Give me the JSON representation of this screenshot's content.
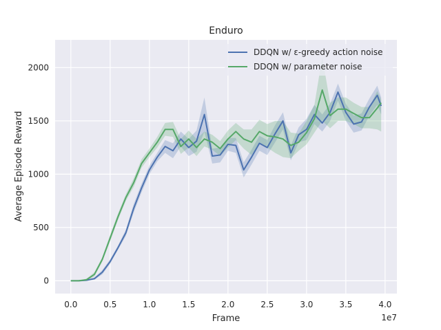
{
  "chart_data": {
    "type": "line",
    "title": "Enduro",
    "xlabel": "Frame",
    "ylabel": "Average Episode Reward",
    "x_offset_label": "1e7",
    "xlim": [
      -0.2,
      4.15
    ],
    "ylim": [
      -120,
      2260
    ],
    "xticks": [
      0.0,
      0.5,
      1.0,
      1.5,
      2.0,
      2.5,
      3.0,
      3.5,
      4.0
    ],
    "xtick_labels": [
      "0.0",
      "0.5",
      "1.0",
      "1.5",
      "2.0",
      "2.5",
      "3.0",
      "3.5",
      "4.0"
    ],
    "yticks": [
      0,
      500,
      1000,
      1500,
      2000
    ],
    "ytick_labels": [
      "0",
      "500",
      "1000",
      "1500",
      "2000"
    ],
    "grid": true,
    "legend_position": "top-right",
    "series": [
      {
        "name": "DDQN w/ ε-greedy action noise",
        "color": "#4c72b0",
        "x": [
          0.0,
          0.1,
          0.2,
          0.3,
          0.4,
          0.5,
          0.6,
          0.7,
          0.8,
          0.9,
          1.0,
          1.1,
          1.2,
          1.3,
          1.4,
          1.5,
          1.6,
          1.7,
          1.8,
          1.9,
          2.0,
          2.1,
          2.2,
          2.3,
          2.4,
          2.5,
          2.6,
          2.7,
          2.8,
          2.9,
          3.0,
          3.1,
          3.2,
          3.3,
          3.4,
          3.5,
          3.6,
          3.7,
          3.8,
          3.9,
          3.95
        ],
        "y": [
          0,
          0,
          5,
          20,
          80,
          180,
          310,
          450,
          680,
          870,
          1040,
          1160,
          1260,
          1220,
          1330,
          1250,
          1310,
          1560,
          1170,
          1180,
          1280,
          1270,
          1040,
          1160,
          1290,
          1250,
          1380,
          1500,
          1200,
          1370,
          1420,
          1560,
          1480,
          1580,
          1770,
          1580,
          1470,
          1490,
          1630,
          1740,
          1640
        ],
        "band_low": [
          0,
          0,
          0,
          10,
          60,
          160,
          290,
          420,
          640,
          830,
          1000,
          1120,
          1200,
          1150,
          1260,
          1170,
          1210,
          1400,
          1100,
          1110,
          1220,
          1200,
          970,
          1090,
          1220,
          1180,
          1300,
          1420,
          1130,
          1300,
          1320,
          1470,
          1400,
          1500,
          1690,
          1500,
          1390,
          1410,
          1550,
          1650,
          1560
        ],
        "band_high": [
          0,
          0,
          10,
          30,
          100,
          200,
          330,
          480,
          720,
          910,
          1080,
          1200,
          1320,
          1290,
          1400,
          1330,
          1410,
          1720,
          1240,
          1250,
          1340,
          1340,
          1110,
          1230,
          1360,
          1320,
          1460,
          1580,
          1270,
          1440,
          1520,
          1650,
          1560,
          1660,
          1850,
          1660,
          1550,
          1570,
          1710,
          1830,
          1720
        ]
      },
      {
        "name": "DDQN w/ parameter noise",
        "color": "#55a868",
        "x": [
          0.0,
          0.1,
          0.2,
          0.3,
          0.4,
          0.5,
          0.6,
          0.7,
          0.8,
          0.9,
          1.0,
          1.1,
          1.2,
          1.3,
          1.4,
          1.5,
          1.6,
          1.7,
          1.8,
          1.9,
          2.0,
          2.1,
          2.2,
          2.3,
          2.4,
          2.5,
          2.6,
          2.7,
          2.8,
          2.9,
          3.0,
          3.1,
          3.2,
          3.3,
          3.4,
          3.5,
          3.6,
          3.7,
          3.8,
          3.9,
          3.95
        ],
        "y": [
          0,
          0,
          10,
          60,
          200,
          400,
          600,
          780,
          920,
          1100,
          1200,
          1300,
          1420,
          1420,
          1260,
          1330,
          1250,
          1330,
          1300,
          1240,
          1330,
          1400,
          1330,
          1300,
          1400,
          1360,
          1350,
          1330,
          1270,
          1300,
          1390,
          1520,
          1790,
          1550,
          1610,
          1610,
          1570,
          1530,
          1530,
          1620,
          1670
        ],
        "band_low": [
          0,
          0,
          0,
          40,
          180,
          370,
          570,
          750,
          880,
          1060,
          1160,
          1250,
          1360,
          1350,
          1190,
          1250,
          1170,
          1260,
          1230,
          1170,
          1250,
          1320,
          1240,
          1180,
          1290,
          1250,
          1200,
          1160,
          1150,
          1220,
          1280,
          1390,
          1500,
          1430,
          1500,
          1500,
          1470,
          1430,
          1430,
          1420,
          1400
        ],
        "band_high": [
          0,
          0,
          20,
          80,
          220,
          430,
          630,
          810,
          960,
          1140,
          1240,
          1350,
          1480,
          1490,
          1330,
          1410,
          1330,
          1400,
          1370,
          1310,
          1410,
          1480,
          1420,
          1420,
          1510,
          1470,
          1500,
          1500,
          1390,
          1380,
          1500,
          1650,
          2100,
          1670,
          1720,
          1720,
          1670,
          1630,
          1630,
          1780,
          1700
        ]
      }
    ]
  }
}
